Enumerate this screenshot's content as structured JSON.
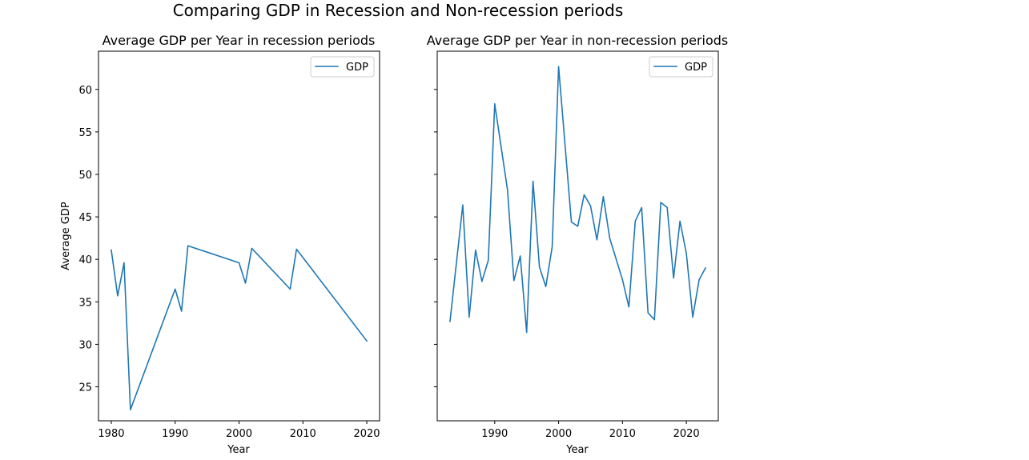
{
  "figure": {
    "suptitle": "Comparing GDP in Recession and Non-recession periods"
  },
  "colors": {
    "series": "#1f77b4"
  },
  "chart_data": [
    {
      "type": "line",
      "title": "Average GDP per Year in recession periods",
      "xlabel": "Year",
      "ylabel": "Average GDP",
      "xlim": [
        1978,
        2022
      ],
      "ylim": [
        21,
        64.5
      ],
      "xticks": [
        1980,
        1990,
        2000,
        2010,
        2020
      ],
      "yticks": [
        25,
        30,
        35,
        40,
        45,
        50,
        55,
        60
      ],
      "show_ytick_labels": true,
      "grid": false,
      "legend": "top-right",
      "series": [
        {
          "name": "GDP",
          "x": [
            1980,
            1981,
            1982,
            1983,
            1990,
            1991,
            1992,
            2000,
            2001,
            2002,
            2008,
            2009,
            2020
          ],
          "y": [
            41.1,
            35.7,
            39.6,
            22.3,
            36.5,
            33.9,
            41.6,
            39.6,
            37.2,
            41.3,
            36.5,
            41.2,
            30.4
          ]
        }
      ]
    },
    {
      "type": "line",
      "title": "Average GDP per Year in non-recession periods",
      "xlabel": "Year",
      "ylabel": "",
      "xlim": [
        1981,
        2025
      ],
      "ylim": [
        21,
        64.5
      ],
      "xticks": [
        1990,
        2000,
        2010,
        2020
      ],
      "yticks": [
        25,
        30,
        35,
        40,
        45,
        50,
        55,
        60
      ],
      "show_ytick_labels": false,
      "grid": false,
      "legend": "top-right",
      "series": [
        {
          "name": "GDP",
          "x": [
            1983,
            1985,
            1986,
            1987,
            1988,
            1989,
            1990,
            1992,
            1993,
            1994,
            1995,
            1996,
            1997,
            1998,
            1999,
            2000,
            2002,
            2003,
            2004,
            2005,
            2006,
            2007,
            2008,
            2010,
            2011,
            2012,
            2013,
            2014,
            2015,
            2016,
            2017,
            2018,
            2019,
            2020,
            2021,
            2022,
            2023
          ],
          "y": [
            32.7,
            46.4,
            33.2,
            41.1,
            37.4,
            39.9,
            58.3,
            48.2,
            37.5,
            40.4,
            31.4,
            49.2,
            39.1,
            36.8,
            41.5,
            62.7,
            44.4,
            43.9,
            47.6,
            46.3,
            42.3,
            47.4,
            42.5,
            37.6,
            34.4,
            44.5,
            46.1,
            33.7,
            32.9,
            46.7,
            46.1,
            37.8,
            44.5,
            40.7,
            33.2,
            37.6,
            39.0
          ]
        }
      ]
    }
  ]
}
